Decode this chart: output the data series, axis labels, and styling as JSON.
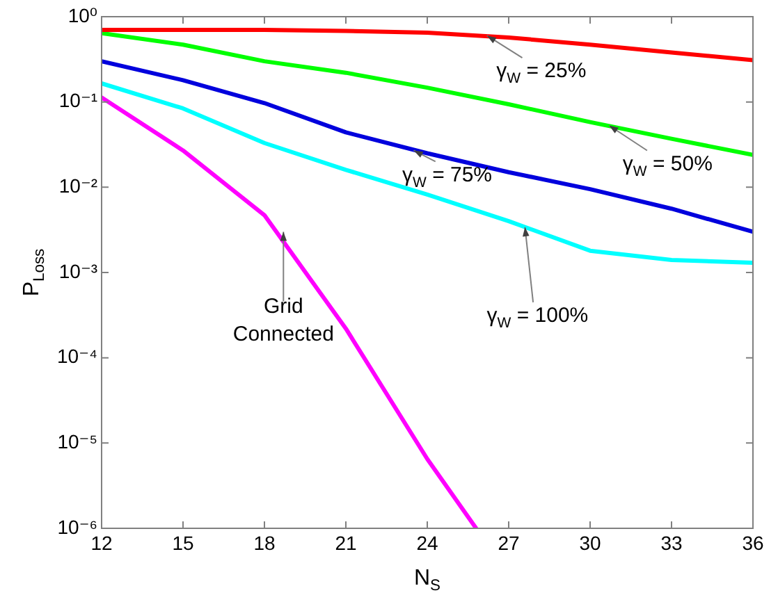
{
  "chart_data": {
    "type": "line",
    "xlabel": "N$_{S}$",
    "ylabel": "P$_{Loss}$",
    "xlim": [
      12,
      36
    ],
    "xticks": [
      12,
      15,
      18,
      21,
      24,
      27,
      30,
      33,
      36
    ],
    "ylim": [
      1e-06,
      1
    ],
    "yticks": [
      {
        "value": 1,
        "label": "10⁰"
      },
      {
        "value": 0.1,
        "label": "10⁻¹"
      },
      {
        "value": 0.01,
        "label": "10⁻²"
      },
      {
        "value": 0.001,
        "label": "10⁻³"
      },
      {
        "value": 0.0001,
        "label": "10⁻⁴"
      },
      {
        "value": 1e-05,
        "label": "10⁻⁵"
      },
      {
        "value": 1e-06,
        "label": "10⁻⁶"
      }
    ],
    "log": "y",
    "grid": false,
    "legend": false,
    "marker": "none",
    "line_style": "solid",
    "x": [
      12,
      15,
      18,
      21,
      24,
      27,
      30,
      33,
      36
    ],
    "series": [
      {
        "color": "#ff0000",
        "values": [
          0.7,
          0.7,
          0.7,
          0.68,
          0.65,
          0.57,
          0.47,
          0.38,
          0.31
        ]
      },
      {
        "color": "#00ff00",
        "values": [
          0.64,
          0.47,
          0.3,
          0.22,
          0.147,
          0.094,
          0.058,
          0.037,
          0.024
        ]
      },
      {
        "color": "#0000dd",
        "values": [
          0.3,
          0.18,
          0.097,
          0.044,
          0.025,
          0.015,
          0.0095,
          0.0056,
          0.003
        ]
      },
      {
        "color": "#00ffff",
        "values": [
          0.165,
          0.084,
          0.033,
          0.016,
          0.0082,
          0.004,
          0.0018,
          0.0014,
          0.0013
        ]
      },
      {
        "color": "#ff00ff",
        "x": [
          12,
          15,
          18,
          21,
          24,
          25.8
        ],
        "values": [
          0.113,
          0.027,
          0.0047,
          0.00022,
          6.5e-06,
          1e-06
        ]
      }
    ],
    "annotations": [
      {
        "text": "γ$_{W}$ = 25%",
        "x": 26.2,
        "y": 0.6
      },
      {
        "text": "γ$_{W}$ = 50%",
        "x": 30.7,
        "y": 0.053
      },
      {
        "text": "γ$_{W}$ = 75%",
        "x": 23.5,
        "y": 0.027
      },
      {
        "text": "γ$_{W}$ = 100%",
        "x": 27.6,
        "y": 0.0034
      },
      {
        "text": "Grid\nConnected",
        "x": 18.7,
        "y": 0.003
      }
    ]
  }
}
